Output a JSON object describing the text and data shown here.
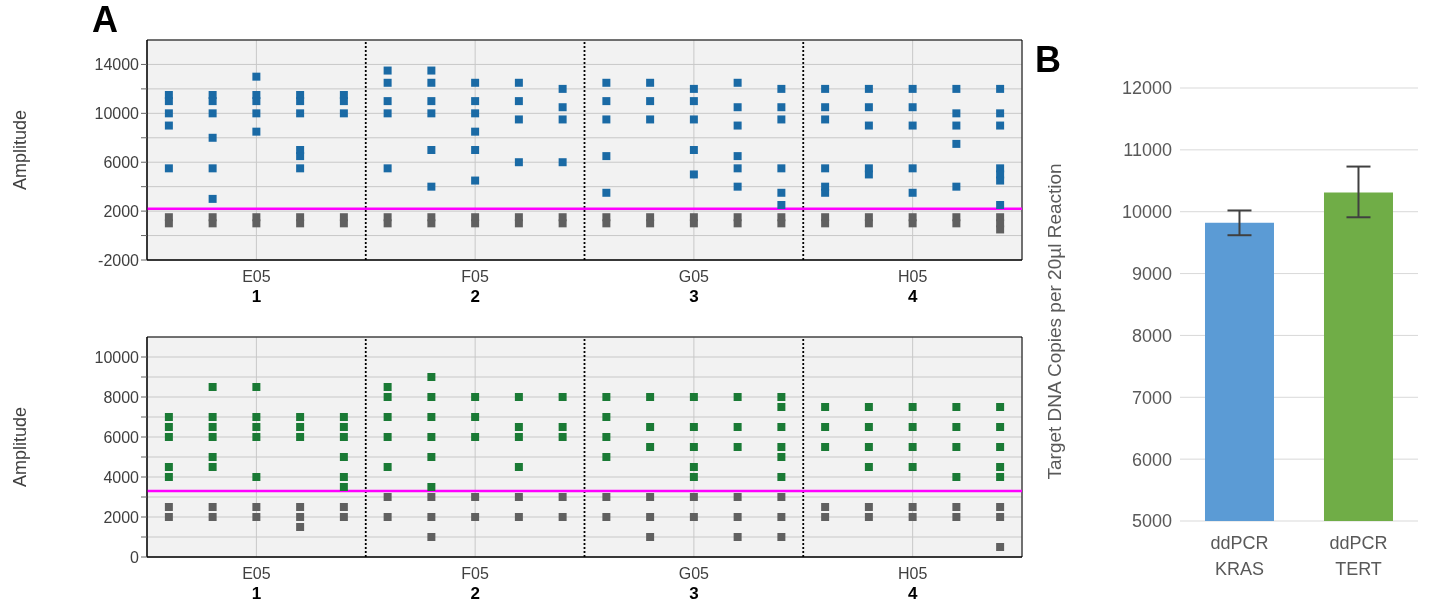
{
  "chart_data": [
    {
      "type": "scatter",
      "title": "A",
      "ylabel": "Amplitude",
      "categories": [
        null,
        null,
        "E05",
        null,
        null,
        null,
        null,
        "F05",
        null,
        null,
        null,
        null,
        "G05",
        null,
        null,
        null,
        null,
        "H05",
        null,
        null
      ],
      "ylim": [
        -2000,
        16000
      ],
      "yticks": [
        -2000,
        {
          "value": 0,
          "label": null
        },
        2000,
        {
          "value": 4000,
          "label": null
        },
        6000,
        {
          "value": 8000,
          "label": null
        },
        10000,
        {
          "value": 12000,
          "label": null
        },
        14000
      ],
      "grid": true,
      "marker": "square",
      "annotations": [
        "1",
        "2",
        "3",
        "4"
      ],
      "ref_lines": [
        {
          "axis": "y",
          "value": 2200,
          "color": "#ff00ff",
          "line_style": "solid"
        }
      ],
      "series": [
        {
          "color": "#1a6aa5",
          "values": [
            11500,
            11500,
            11500,
            11500,
            11500,
            12500,
            12500,
            12500,
            12500,
            12000,
            12500,
            12500,
            12000,
            12500,
            12000,
            12000,
            12000,
            12000,
            12000,
            12000
          ]
        },
        {
          "color": "#1a6aa5",
          "values": [
            11000,
            11000,
            11000,
            11000,
            11000,
            11000,
            11000,
            11000,
            11000,
            10500,
            11000,
            11000,
            11000,
            10500,
            10500,
            10500,
            10500,
            10500,
            10000,
            10000
          ]
        },
        {
          "color": "#1a6aa5",
          "values": [
            10000,
            10000,
            10000,
            10000,
            10000,
            10000,
            10000,
            10000,
            9500,
            9500,
            9500,
            9500,
            9500,
            9000,
            9500,
            9500,
            9000,
            9000,
            9000,
            9000
          ]
        },
        {
          "color": "#1a6aa5",
          "values": [
            5500,
            5500,
            13000,
            7000,
            null,
            5500,
            13500,
            4500,
            6000,
            6000,
            3500,
            null,
            5000,
            4000,
            2500,
            4000,
            5000,
            5500,
            4000,
            5500
          ]
        },
        {
          "color": "#1a6aa5",
          "values": [
            9000,
            3000,
            8500,
            6500,
            null,
            13500,
            4000,
            7000,
            null,
            null,
            6500,
            null,
            7000,
            5500,
            5500,
            5500,
            5500,
            3500,
            7500,
            5000
          ]
        },
        {
          "color": "#1a6aa5",
          "values": [
            null,
            8000,
            null,
            5500,
            null,
            null,
            7000,
            8500,
            null,
            null,
            null,
            null,
            null,
            6500,
            3500,
            3500,
            null,
            null,
            null,
            2500
          ]
        },
        {
          "color": "#1a6aa5",
          "values": [
            null,
            null,
            null,
            null,
            null,
            null,
            null,
            null,
            null,
            null,
            null,
            null,
            null,
            null,
            null,
            null,
            null,
            null,
            null,
            4500
          ]
        },
        {
          "color": "#606060",
          "values": [
            1500,
            1500,
            1500,
            1500,
            1500,
            1500,
            1500,
            1500,
            1500,
            1500,
            1500,
            1500,
            1500,
            1500,
            1500,
            1500,
            1500,
            1500,
            1500,
            1500
          ]
        },
        {
          "color": "#606060",
          "values": [
            1000,
            1000,
            1000,
            1000,
            1000,
            1000,
            1000,
            1000,
            1000,
            1000,
            1000,
            1000,
            1000,
            1000,
            1000,
            1000,
            1000,
            1000,
            1000,
            1000
          ]
        },
        {
          "color": "#606060",
          "values": [
            null,
            null,
            null,
            null,
            null,
            null,
            null,
            null,
            null,
            null,
            null,
            null,
            null,
            null,
            null,
            null,
            null,
            null,
            null,
            500
          ]
        }
      ]
    },
    {
      "type": "scatter",
      "ylabel": "Amplitude",
      "categories": [
        null,
        null,
        "E05",
        null,
        null,
        null,
        null,
        "F05",
        null,
        null,
        null,
        null,
        "G05",
        null,
        null,
        null,
        null,
        "H05",
        null,
        null
      ],
      "ylim": [
        0,
        11000
      ],
      "yticks": [
        0,
        {
          "value": 1000,
          "label": null
        },
        2000,
        {
          "value": 3000,
          "label": null
        },
        4000,
        {
          "value": 5000,
          "label": null
        },
        6000,
        {
          "value": 7000,
          "label": null
        },
        8000,
        {
          "value": 9000,
          "label": null
        },
        10000
      ],
      "grid": true,
      "marker": "square",
      "annotations": [
        "1",
        "2",
        "3",
        "4"
      ],
      "ref_lines": [
        {
          "axis": "y",
          "value": 3300,
          "color": "#ff00ff",
          "line_style": "solid"
        }
      ],
      "series": [
        {
          "color": "#1a7a35",
          "values": [
            7000,
            7000,
            7000,
            7000,
            7000,
            8000,
            8000,
            8000,
            8000,
            8000,
            8000,
            8000,
            8000,
            8000,
            7500,
            7500,
            7500,
            7500,
            7500,
            7500
          ]
        },
        {
          "color": "#1a7a35",
          "values": [
            6500,
            6500,
            6500,
            6500,
            6500,
            7000,
            7000,
            7000,
            6500,
            6500,
            7000,
            6500,
            6500,
            6500,
            6500,
            6500,
            6500,
            6500,
            6500,
            6500
          ]
        },
        {
          "color": "#1a7a35",
          "values": [
            6000,
            6000,
            6000,
            6000,
            6000,
            6000,
            6000,
            6000,
            6000,
            6000,
            6000,
            5500,
            5500,
            5500,
            5500,
            5500,
            5500,
            5500,
            5500,
            5500
          ]
        },
        {
          "color": "#1a7a35",
          "values": [
            4500,
            8500,
            8500,
            null,
            4000,
            8500,
            9000,
            null,
            4500,
            null,
            5000,
            null,
            4000,
            null,
            8000,
            null,
            4500,
            4500,
            4000,
            4000
          ]
        },
        {
          "color": "#1a7a35",
          "values": [
            4000,
            4500,
            4000,
            null,
            3500,
            4500,
            3500,
            null,
            null,
            null,
            null,
            null,
            4500,
            null,
            4000,
            null,
            null,
            null,
            null,
            4500
          ]
        },
        {
          "color": "#1a7a35",
          "values": [
            null,
            5000,
            null,
            null,
            5000,
            null,
            5000,
            null,
            null,
            null,
            null,
            null,
            null,
            null,
            5000,
            null,
            null,
            null,
            null,
            null
          ]
        },
        {
          "color": "#606060",
          "values": [
            2500,
            2500,
            2500,
            2500,
            2500,
            3000,
            3000,
            3000,
            3000,
            3000,
            3000,
            3000,
            3000,
            3000,
            3000,
            2500,
            2500,
            2500,
            2500,
            2500
          ]
        },
        {
          "color": "#606060",
          "values": [
            2000,
            2000,
            2000,
            2000,
            2000,
            2000,
            2000,
            2000,
            2000,
            2000,
            2000,
            2000,
            2000,
            2000,
            2000,
            2000,
            2000,
            2000,
            2000,
            2000
          ]
        },
        {
          "color": "#606060",
          "values": [
            null,
            null,
            null,
            1500,
            null,
            null,
            1000,
            null,
            null,
            null,
            null,
            1000,
            null,
            1000,
            1000,
            null,
            null,
            null,
            null,
            500
          ]
        }
      ]
    },
    {
      "type": "bar",
      "title": "B",
      "ylabel": "Target DNA Copies per 20µl Reaction",
      "categories": [
        "ddPCR KRAS",
        "ddPCR TERT"
      ],
      "values": [
        9820,
        10310
      ],
      "colors": [
        "#5b9bd5",
        "#70ad47"
      ],
      "errors": [
        [
          9620,
          10020
        ],
        [
          9910,
          10730
        ]
      ],
      "ylim": [
        5000,
        12000
      ],
      "yticks": [
        5000,
        6000,
        7000,
        8000,
        9000,
        10000,
        11000,
        12000
      ],
      "grid": "y"
    }
  ]
}
